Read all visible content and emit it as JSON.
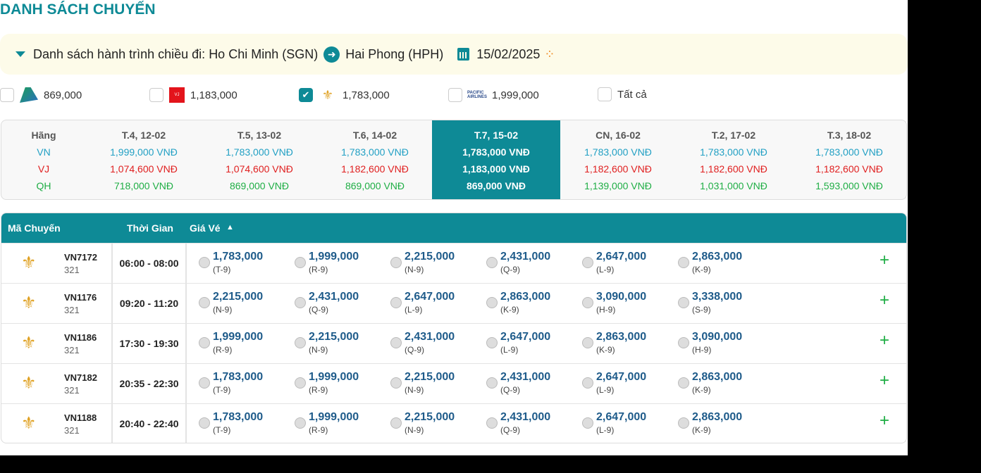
{
  "title": "DANH SÁCH CHUYẾN",
  "route": {
    "label": "Danh sách hành trình chiều đi:",
    "from": "Ho Chi Minh (SGN)",
    "to": "Hai Phong (HPH)",
    "date": "15/02/2025",
    "spinner": "⁘"
  },
  "filters": [
    {
      "airline": "Bamboo",
      "price": "869,000",
      "checked": false
    },
    {
      "airline": "VietJet",
      "price": "1,183,000",
      "checked": false
    },
    {
      "airline": "Vietnam Airlines",
      "price": "1,783,000",
      "checked": true
    },
    {
      "airline": "Pacific Airlines",
      "price": "1,999,000",
      "checked": false
    },
    {
      "label": "Tất cả",
      "checked": false
    }
  ],
  "price_grid": {
    "header": "Hãng",
    "airlines": [
      "VN",
      "VJ",
      "QH"
    ],
    "days": [
      {
        "date": "T.4, 12-02",
        "vn": "1,999,000 VNĐ",
        "vj": "1,074,600 VNĐ",
        "qh": "718,000 VNĐ"
      },
      {
        "date": "T.5, 13-02",
        "vn": "1,783,000 VNĐ",
        "vj": "1,074,600 VNĐ",
        "qh": "869,000 VNĐ"
      },
      {
        "date": "T.6, 14-02",
        "vn": "1,783,000 VNĐ",
        "vj": "1,182,600 VNĐ",
        "qh": "869,000 VNĐ"
      },
      {
        "date": "T.7, 15-02",
        "vn": "1,783,000 VNĐ",
        "vj": "1,183,000 VNĐ",
        "qh": "869,000 VNĐ",
        "selected": true
      },
      {
        "date": "CN, 16-02",
        "vn": "1,783,000 VNĐ",
        "vj": "1,182,600 VNĐ",
        "qh": "1,139,000 VNĐ"
      },
      {
        "date": "T.2, 17-02",
        "vn": "1,783,000 VNĐ",
        "vj": "1,182,600 VNĐ",
        "qh": "1,031,000 VNĐ"
      },
      {
        "date": "T.3, 18-02",
        "vn": "1,783,000 VNĐ",
        "vj": "1,182,600 VNĐ",
        "qh": "1,593,000 VNĐ"
      }
    ]
  },
  "flights_table": {
    "headers": {
      "code": "Mã Chuyến",
      "time": "Thời Gian",
      "price": "Giá Vé",
      "sort": "▲"
    },
    "rows": [
      {
        "code": "VN7172",
        "aircraft": "321",
        "time": "06:00 - 08:00",
        "fares": [
          [
            "1,783,000",
            "(T-9)"
          ],
          [
            "1,999,000",
            "(R-9)"
          ],
          [
            "2,215,000",
            "(N-9)"
          ],
          [
            "2,431,000",
            "(Q-9)"
          ],
          [
            "2,647,000",
            "(L-9)"
          ],
          [
            "2,863,000",
            "(K-9)"
          ]
        ]
      },
      {
        "code": "VN1176",
        "aircraft": "321",
        "time": "09:20 - 11:20",
        "fares": [
          [
            "2,215,000",
            "(N-9)"
          ],
          [
            "2,431,000",
            "(Q-9)"
          ],
          [
            "2,647,000",
            "(L-9)"
          ],
          [
            "2,863,000",
            "(K-9)"
          ],
          [
            "3,090,000",
            "(H-9)"
          ],
          [
            "3,338,000",
            "(S-9)"
          ]
        ]
      },
      {
        "code": "VN1186",
        "aircraft": "321",
        "time": "17:30 - 19:30",
        "fares": [
          [
            "1,999,000",
            "(R-9)"
          ],
          [
            "2,215,000",
            "(N-9)"
          ],
          [
            "2,431,000",
            "(Q-9)"
          ],
          [
            "2,647,000",
            "(L-9)"
          ],
          [
            "2,863,000",
            "(K-9)"
          ],
          [
            "3,090,000",
            "(H-9)"
          ]
        ]
      },
      {
        "code": "VN7182",
        "aircraft": "321",
        "time": "20:35 - 22:30",
        "fares": [
          [
            "1,783,000",
            "(T-9)"
          ],
          [
            "1,999,000",
            "(R-9)"
          ],
          [
            "2,215,000",
            "(N-9)"
          ],
          [
            "2,431,000",
            "(Q-9)"
          ],
          [
            "2,647,000",
            "(L-9)"
          ],
          [
            "2,863,000",
            "(K-9)"
          ]
        ]
      },
      {
        "code": "VN1188",
        "aircraft": "321",
        "time": "20:40 - 22:40",
        "fares": [
          [
            "1,783,000",
            "(T-9)"
          ],
          [
            "1,999,000",
            "(R-9)"
          ],
          [
            "2,215,000",
            "(N-9)"
          ],
          [
            "2,431,000",
            "(Q-9)"
          ],
          [
            "2,647,000",
            "(L-9)"
          ],
          [
            "2,863,000",
            "(K-9)"
          ]
        ]
      }
    ]
  }
}
